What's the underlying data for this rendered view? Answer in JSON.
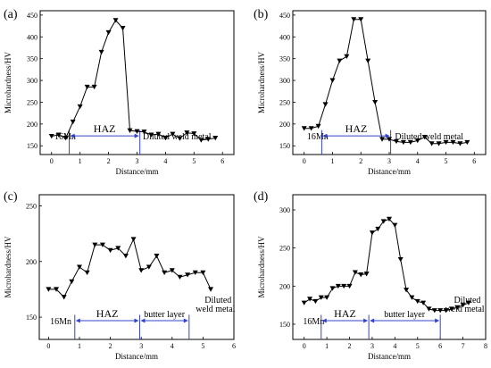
{
  "chart_data": [
    {
      "type": "line",
      "panel_label": "(a)",
      "xlabel": "Distance/mm",
      "ylabel": "Microhardness/HV",
      "xlim": [
        -0.4,
        6.4
      ],
      "ylim": [
        130,
        460
      ],
      "xticks": [
        0,
        1,
        2,
        3,
        4,
        5,
        6
      ],
      "yticks": [
        150,
        200,
        250,
        300,
        350,
        400,
        450
      ],
      "series": [
        {
          "x": [
            0,
            0.25,
            0.5,
            0.75,
            1.0,
            1.25,
            1.5,
            1.75,
            2.0,
            2.25,
            2.5,
            2.75,
            3.0,
            3.25,
            3.5,
            3.75,
            4.0,
            4.25,
            4.5,
            4.75,
            5.0,
            5.25,
            5.5,
            5.75
          ],
          "y": [
            172,
            175,
            168,
            205,
            240,
            285,
            285,
            365,
            410,
            438,
            420,
            185,
            183,
            182,
            175,
            177,
            168,
            177,
            167,
            180,
            178,
            163,
            165,
            168
          ]
        }
      ],
      "dividers": [
        0.62,
        3.1
      ],
      "regions": [
        {
          "label": "16Mn",
          "anchor_x": 0.1
        },
        {
          "label": "HAZ",
          "x0": 0.62,
          "x1": 3.1
        },
        {
          "label": "Diluted weld metal",
          "anchor_x": 3.2
        }
      ]
    },
    {
      "type": "line",
      "panel_label": "(b)",
      "xlabel": "Distance/mm",
      "ylabel": "Microhardness/HV",
      "xlim": [
        -0.4,
        6.4
      ],
      "ylim": [
        130,
        460
      ],
      "xticks": [
        0,
        1,
        2,
        3,
        4,
        5,
        6
      ],
      "yticks": [
        150,
        200,
        250,
        300,
        350,
        400,
        450
      ],
      "series": [
        {
          "x": [
            0,
            0.25,
            0.5,
            0.75,
            1.0,
            1.25,
            1.5,
            1.75,
            2.0,
            2.25,
            2.5,
            2.75,
            3.0,
            3.25,
            3.5,
            3.75,
            4.0,
            4.25,
            4.5,
            4.75,
            5.0,
            5.25,
            5.5,
            5.75
          ],
          "y": [
            190,
            190,
            195,
            245,
            300,
            345,
            355,
            440,
            440,
            345,
            250,
            165,
            165,
            160,
            158,
            158,
            162,
            170,
            155,
            155,
            158,
            158,
            155,
            158
          ]
        }
      ],
      "dividers": [
        0.62,
        3.05
      ],
      "regions": [
        {
          "label": "16Mn",
          "anchor_x": 0.1
        },
        {
          "label": "HAZ",
          "x0": 0.62,
          "x1": 3.05
        },
        {
          "label": "Diluted weld metal",
          "anchor_x": 3.2
        }
      ]
    },
    {
      "type": "line",
      "panel_label": "(c)",
      "xlabel": "Distance/mm",
      "ylabel": "Microhardness/HV",
      "xlim": [
        -0.3,
        6.0
      ],
      "ylim": [
        130,
        260
      ],
      "xticks": [
        0,
        1,
        2,
        3,
        4,
        5,
        6
      ],
      "yticks": [
        150,
        200,
        250
      ],
      "series": [
        {
          "x": [
            0,
            0.25,
            0.5,
            0.75,
            1.0,
            1.25,
            1.5,
            1.75,
            2.0,
            2.25,
            2.5,
            2.75,
            3.0,
            3.25,
            3.5,
            3.75,
            4.0,
            4.25,
            4.5,
            4.75,
            5.0,
            5.25
          ],
          "y": [
            175,
            175,
            168,
            182,
            195,
            190,
            215,
            215,
            210,
            212,
            205,
            220,
            192,
            195,
            205,
            190,
            192,
            186,
            188,
            190,
            190,
            175
          ]
        }
      ],
      "dividers": [
        0.85,
        2.95,
        4.55
      ],
      "regions": [
        {
          "label": "16Mn",
          "anchor_x": 0.05
        },
        {
          "label": "HAZ",
          "x0": 0.85,
          "x1": 2.95
        },
        {
          "label": "butter layer",
          "x0": 2.95,
          "x1": 4.55
        },
        {
          "label": "Diluted",
          "line2": "weld metal",
          "anchor_x": 4.65
        }
      ]
    },
    {
      "type": "line",
      "panel_label": "(d)",
      "xlabel": "Distance/mm",
      "ylabel": "Microhardness/HV",
      "xlim": [
        -0.5,
        8.0
      ],
      "ylim": [
        130,
        320
      ],
      "xticks": [
        0,
        1,
        2,
        3,
        4,
        5,
        6,
        7,
        8
      ],
      "yticks": [
        150,
        200,
        250,
        300
      ],
      "series": [
        {
          "x": [
            0,
            0.25,
            0.5,
            0.75,
            1.0,
            1.25,
            1.5,
            1.75,
            2.0,
            2.25,
            2.5,
            2.75,
            3.0,
            3.25,
            3.5,
            3.75,
            4.0,
            4.25,
            4.5,
            4.75,
            5.0,
            5.25,
            5.5,
            5.75,
            6.0,
            6.25,
            6.5,
            6.75,
            7.0,
            7.25
          ],
          "y": [
            178,
            183,
            180,
            185,
            185,
            197,
            200,
            200,
            200,
            218,
            215,
            216,
            270,
            275,
            285,
            288,
            280,
            235,
            195,
            185,
            180,
            178,
            170,
            168,
            168,
            168,
            170,
            172,
            175,
            178
          ]
        }
      ],
      "dividers": [
        0.75,
        2.85,
        6.0
      ],
      "regions": [
        {
          "label": "16Mn",
          "anchor_x": -0.05
        },
        {
          "label": "HAZ",
          "x0": 0.75,
          "x1": 2.85
        },
        {
          "label": "butter layer",
          "x0": 2.85,
          "x1": 6.0
        },
        {
          "label": "Diluted",
          "line2": "weld metal",
          "anchor_x": 6.05
        }
      ]
    }
  ]
}
